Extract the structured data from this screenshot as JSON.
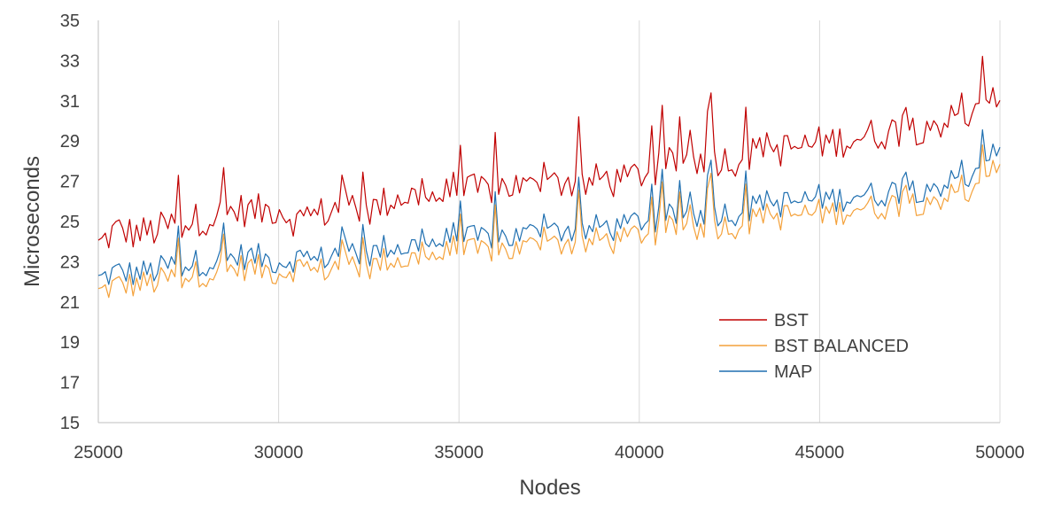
{
  "chart_data": {
    "type": "line",
    "title": "",
    "xlabel": "Nodes",
    "ylabel": "Microseconds",
    "xlim": [
      25000,
      50000
    ],
    "ylim": [
      15,
      35
    ],
    "x_ticks": [
      25000,
      30000,
      35000,
      40000,
      45000,
      50000
    ],
    "y_ticks": [
      15,
      17,
      19,
      21,
      23,
      25,
      27,
      29,
      31,
      33,
      35
    ],
    "grid": "vertical",
    "legend_position": "lower-right",
    "x": [
      25000,
      25500,
      26000,
      26500,
      27000,
      27500,
      28000,
      28500,
      29000,
      29500,
      30000,
      30500,
      31000,
      31500,
      32000,
      32500,
      33000,
      33500,
      34000,
      34500,
      35000,
      35500,
      36000,
      36500,
      37000,
      37500,
      38000,
      38500,
      39000,
      39500,
      40000,
      40500,
      41000,
      41500,
      42000,
      42500,
      43000,
      43500,
      44000,
      44500,
      45000,
      45500,
      46000,
      46500,
      47000,
      47500,
      48000,
      48500,
      49000,
      49500,
      50000
    ],
    "series": [
      {
        "name": "BST",
        "color": "#c00000",
        "values": [
          23.8,
          24.6,
          24.4,
          24.5,
          24.8,
          25.0,
          25.2,
          25.4,
          25.6,
          25.5,
          25.7,
          25.0,
          25.3,
          25.6,
          25.8,
          25.5,
          26.0,
          26.3,
          26.2,
          26.3,
          26.5,
          26.5,
          26.7,
          26.8,
          26.6,
          26.9,
          27.0,
          26.8,
          27.2,
          26.9,
          27.4,
          27.5,
          28.0,
          28.1,
          28.2,
          28.0,
          28.3,
          28.5,
          28.6,
          28.7,
          28.9,
          29.0,
          29.2,
          29.3,
          29.5,
          29.6,
          29.8,
          30.0,
          30.2,
          30.3,
          31.4
        ]
      },
      {
        "name": "BST BALANCED",
        "color": "#f4a13a",
        "values": [
          21.6,
          22.0,
          22.0,
          22.1,
          22.3,
          22.5,
          22.6,
          22.7,
          22.9,
          22.8,
          22.6,
          22.9,
          22.6,
          22.9,
          23.0,
          22.8,
          23.3,
          23.2,
          23.4,
          23.5,
          23.7,
          23.6,
          23.8,
          23.7,
          23.9,
          24.0,
          24.1,
          24.0,
          24.3,
          24.1,
          24.6,
          24.5,
          24.9,
          24.8,
          25.0,
          24.9,
          25.1,
          25.3,
          25.4,
          25.5,
          25.6,
          25.6,
          25.9,
          25.8,
          26.0,
          26.1,
          26.2,
          26.4,
          26.5,
          26.6,
          28.3
        ]
      },
      {
        "name": "MAP",
        "color": "#1f6fb0",
        "values": [
          22.1,
          22.5,
          22.4,
          22.5,
          22.8,
          22.9,
          23.0,
          23.1,
          23.3,
          23.2,
          23.0,
          23.2,
          23.0,
          23.4,
          23.5,
          23.3,
          23.8,
          23.7,
          23.9,
          24.0,
          24.2,
          24.1,
          24.3,
          24.2,
          24.4,
          24.5,
          24.6,
          24.5,
          24.8,
          24.6,
          25.1,
          25.0,
          25.3,
          25.3,
          25.5,
          25.4,
          25.6,
          25.8,
          25.9,
          26.0,
          26.2,
          26.1,
          26.4,
          26.3,
          26.5,
          26.6,
          26.7,
          26.9,
          27.1,
          27.2,
          29.0
        ]
      }
    ]
  }
}
